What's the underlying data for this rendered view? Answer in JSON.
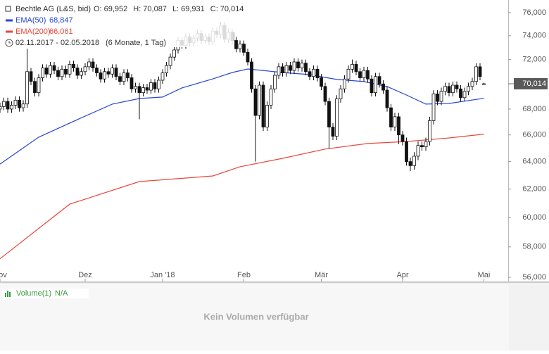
{
  "chart_data": {
    "type": "candlestick",
    "title": "Bechtle AG (L&S, bid)",
    "header": {
      "labels": [
        "O:",
        "H:",
        "L:",
        "C:"
      ],
      "values": [
        69952,
        70087,
        69931,
        70014
      ],
      "value_labels": [
        "69,952",
        "70,087",
        "69,931",
        "70,014"
      ]
    },
    "date_range": "02.11.2017 - 02.05.2018",
    "period": "(6 Monate, 1 Tag)",
    "last_price": {
      "value": 70014,
      "label": "70,014"
    },
    "log_scale": true,
    "ylim": [
      56000,
      76000
    ],
    "yticks": [
      {
        "value": 56000,
        "label": "56,000"
      },
      {
        "value": 58000,
        "label": "58,000"
      },
      {
        "value": 60000,
        "label": "60,000"
      },
      {
        "value": 62000,
        "label": "62,000"
      },
      {
        "value": 64000,
        "label": "64,000"
      },
      {
        "value": 66000,
        "label": "66,000"
      },
      {
        "value": 68000,
        "label": "68,000"
      },
      {
        "value": 70000,
        "label": "70,000"
      },
      {
        "value": 72000,
        "label": "72,000"
      },
      {
        "value": 74000,
        "label": "74,000"
      },
      {
        "value": 76000,
        "label": "76,000"
      }
    ],
    "xticks": [
      {
        "value": 0,
        "label": "Nov"
      },
      {
        "value": 22,
        "label": "Dez"
      },
      {
        "value": 42,
        "label": "Jan '18"
      },
      {
        "value": 63,
        "label": "Feb"
      },
      {
        "value": 83,
        "label": "Mär"
      },
      {
        "value": 104,
        "label": "Apr"
      },
      {
        "value": 125,
        "label": "Mai"
      }
    ],
    "up_color": "#ffffff",
    "down_color": "#111111",
    "open": [
      68000,
      68200,
      68600,
      68000,
      68300,
      68700,
      68100,
      68400,
      71000,
      70200,
      69300,
      70500,
      71300,
      70800,
      71500,
      71100,
      70600,
      71200,
      70800,
      71600,
      71300,
      70700,
      71000,
      71400,
      71800,
      71300,
      70900,
      70400,
      71000,
      70800,
      71300,
      70600,
      70200,
      70900,
      70500,
      69600,
      69800,
      69300,
      69700,
      69500,
      70100,
      69600,
      70300,
      70900,
      71500,
      72200,
      72800,
      73600,
      73200,
      73900,
      73400,
      73800,
      74200,
      73600,
      73900,
      73500,
      74400,
      74100,
      74900,
      73700,
      74300,
      73600,
      72900,
      73300,
      72600,
      71800,
      69600,
      67500,
      69900,
      66600,
      68300,
      69600,
      70700,
      71400,
      70900,
      71500,
      71100,
      71800,
      71300,
      71700,
      71000,
      70600,
      71200,
      70500,
      69800,
      68600,
      66600,
      65900,
      68800,
      69600,
      70400,
      71200,
      71600,
      71000,
      70500,
      71100,
      70400,
      69300,
      70600,
      70000,
      69500,
      68100,
      66600,
      67400,
      66000,
      65500,
      64000,
      63700,
      64400,
      65200,
      65100,
      65500,
      67100,
      69200,
      68600,
      69400,
      69800,
      69300,
      69900,
      69600,
      68900,
      69400,
      69800,
      70200,
      71400,
      69952
    ],
    "high": [
      68500,
      68900,
      68900,
      68600,
      69000,
      69000,
      68700,
      72900,
      71300,
      70500,
      70800,
      71600,
      71600,
      71800,
      71800,
      71400,
      71500,
      71500,
      71900,
      71900,
      71600,
      71300,
      71700,
      72100,
      72100,
      71600,
      71200,
      71300,
      71300,
      71600,
      71600,
      70900,
      71200,
      71200,
      70800,
      70100,
      70100,
      70000,
      70000,
      70400,
      70400,
      70600,
      71200,
      71800,
      72500,
      73100,
      73900,
      73900,
      74200,
      74200,
      74100,
      74500,
      74500,
      74200,
      74200,
      74700,
      74700,
      75200,
      75200,
      74600,
      74600,
      73900,
      73600,
      73600,
      72900,
      72100,
      69900,
      70200,
      70200,
      68600,
      69900,
      71000,
      71700,
      71700,
      71800,
      71800,
      72100,
      72100,
      72000,
      72000,
      71300,
      71500,
      71500,
      70800,
      70100,
      68900,
      66900,
      69100,
      69900,
      70700,
      71500,
      72000,
      71900,
      71300,
      71400,
      71400,
      70700,
      70900,
      70900,
      70300,
      69800,
      68400,
      67700,
      67700,
      66300,
      65800,
      64300,
      64700,
      65500,
      65500,
      65800,
      67400,
      69500,
      69500,
      69700,
      70100,
      70100,
      70200,
      70200,
      69900,
      69700,
      70100,
      70500,
      71700,
      71700,
      70087
    ],
    "low": [
      67700,
      67900,
      67700,
      67700,
      68000,
      67800,
      67800,
      68100,
      69900,
      69000,
      69000,
      70200,
      70500,
      70500,
      70800,
      70300,
      70300,
      70500,
      70500,
      71000,
      70400,
      70400,
      70700,
      71100,
      71000,
      70600,
      70100,
      70100,
      70500,
      70500,
      70300,
      69900,
      69900,
      70200,
      69300,
      69300,
      67200,
      69000,
      69200,
      69200,
      69300,
      69300,
      70000,
      70600,
      71200,
      71900,
      72500,
      72900,
      72900,
      73100,
      73100,
      73500,
      73300,
      73300,
      73200,
      73200,
      73800,
      73800,
      73400,
      73400,
      73300,
      72600,
      72600,
      72300,
      71500,
      69300,
      64000,
      67200,
      66300,
      66300,
      68000,
      69300,
      70400,
      70600,
      70600,
      70800,
      70800,
      71000,
      71000,
      70700,
      70300,
      70300,
      70200,
      69500,
      68300,
      64950,
      65600,
      65600,
      68500,
      69300,
      70100,
      70900,
      70700,
      70200,
      70200,
      70100,
      69000,
      69000,
      69700,
      69200,
      67800,
      66300,
      66300,
      65300,
      65200,
      63700,
      63300,
      63400,
      64100,
      64800,
      64800,
      65200,
      66800,
      68300,
      68300,
      69100,
      69000,
      69000,
      69300,
      68600,
      68600,
      69100,
      69500,
      69900,
      70300,
      69931
    ],
    "close": [
      68200,
      68600,
      68000,
      68300,
      68700,
      68100,
      68400,
      71000,
      70200,
      69300,
      70500,
      71300,
      70800,
      71500,
      71100,
      70600,
      71200,
      70800,
      71600,
      71300,
      70700,
      71000,
      71400,
      71800,
      71300,
      70900,
      70400,
      71000,
      70800,
      71300,
      70600,
      70200,
      70900,
      70500,
      69600,
      69800,
      69300,
      69700,
      69500,
      70100,
      69600,
      70300,
      70900,
      71500,
      72200,
      72800,
      73600,
      73200,
      73900,
      73400,
      73800,
      74200,
      73600,
      73900,
      73500,
      74400,
      74100,
      74900,
      73700,
      74300,
      73600,
      72900,
      73300,
      72600,
      71800,
      69600,
      67500,
      69900,
      66600,
      68300,
      69600,
      70700,
      71400,
      70900,
      71500,
      71100,
      71800,
      71300,
      71700,
      71000,
      70600,
      71200,
      70500,
      69800,
      68600,
      66600,
      65900,
      68800,
      69600,
      70400,
      71200,
      71600,
      71000,
      70500,
      71100,
      70400,
      69300,
      70600,
      70000,
      69500,
      68100,
      66600,
      67400,
      66000,
      65500,
      64000,
      63700,
      64400,
      65200,
      65100,
      65500,
      67100,
      69200,
      68600,
      69400,
      69800,
      69300,
      69900,
      69600,
      68900,
      69400,
      69800,
      70200,
      71400,
      70600,
      70014
    ],
    "series": [
      {
        "name": "EMA(50)",
        "color": "#2846d6",
        "last_value_label": "68,847",
        "x": [
          0,
          10,
          20,
          29,
          36,
          42,
          47,
          55,
          60,
          64,
          73,
          80,
          87,
          94,
          100,
          105,
          110,
          116,
          125
        ],
        "values": [
          63820,
          65830,
          67180,
          68390,
          68830,
          68950,
          69680,
          70410,
          70930,
          71220,
          70930,
          70760,
          70360,
          70190,
          69790,
          69110,
          68390,
          68440,
          68847
        ]
      },
      {
        "name": "EMA(200)",
        "color": "#e8463a",
        "last_value_label": "66,061",
        "x": [
          0,
          18,
          36,
          55,
          62,
          73,
          84,
          95,
          105,
          116,
          125
        ],
        "values": [
          57210,
          60930,
          62540,
          62950,
          63620,
          64240,
          64930,
          65350,
          65500,
          65770,
          66061
        ]
      }
    ],
    "volume": {
      "title": "Volume(1)",
      "value": "N/A",
      "message": "Kein Volumen verfügbar"
    }
  }
}
